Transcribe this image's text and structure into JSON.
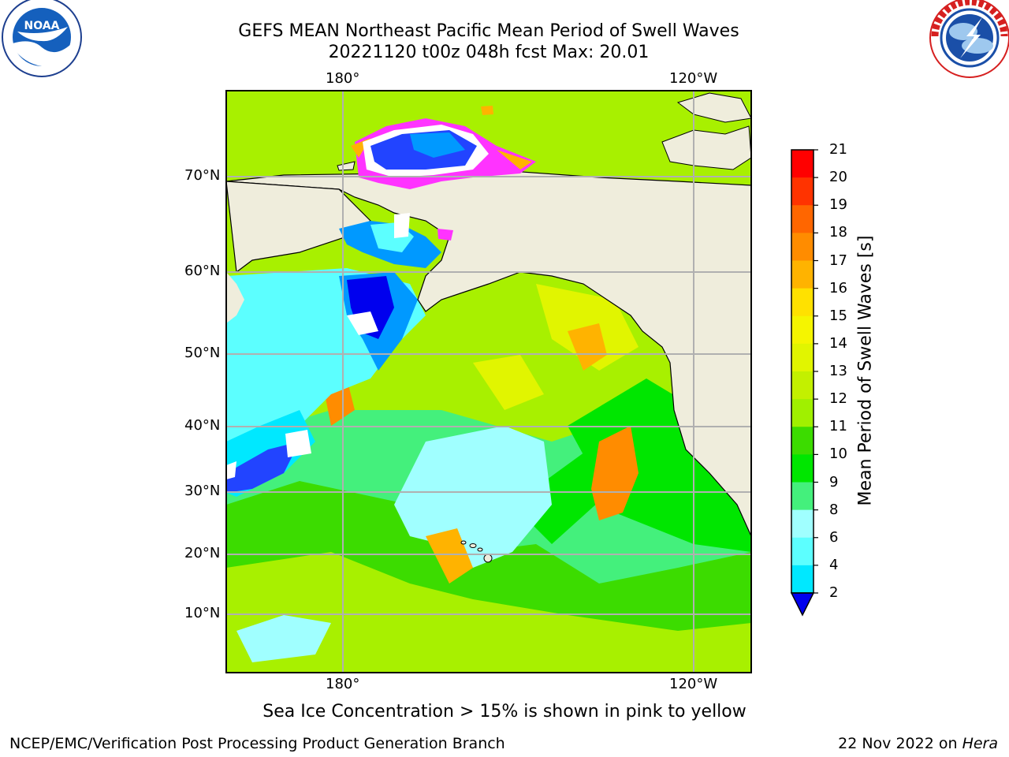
{
  "header": {
    "title_line1": "GEFS MEAN Northeast Pacific Mean Period of Swell Waves",
    "title_line2": "20221120 t00z 048h fcst   Max: 20.01"
  },
  "logos": {
    "noaa": {
      "text": "NOAA",
      "ring_text": "NATIONAL OCEANIC AND ATMOSPHERIC ADMINISTRATION · U.S. DEPARTMENT OF COMMERCE"
    },
    "nws": {
      "ring_text": "NATIONAL WEATHER SERVICE"
    }
  },
  "map": {
    "top_lon_labels": [
      "180°",
      "120°W"
    ],
    "bottom_lon_labels": [
      "180°",
      "120°W"
    ],
    "lat_labels": [
      "70°N",
      "60°N",
      "50°N",
      "40°N",
      "30°N",
      "20°N",
      "10°N"
    ],
    "colors": {
      "land": "#efeddc",
      "ice_pink": "#ff33ff",
      "ocean_deep": "#2244ff"
    }
  },
  "colorbar": {
    "title": "Mean Period of Swell Waves [s]",
    "ticks": [
      "21",
      "20",
      "19",
      "18",
      "17",
      "16",
      "15",
      "14",
      "13",
      "12",
      "11",
      "10",
      "9",
      "8",
      "6",
      "4",
      "2"
    ],
    "colors": [
      "#ff0000",
      "#ff3300",
      "#ff6600",
      "#ff8c00",
      "#ffb300",
      "#ffe100",
      "#f5f500",
      "#e1f500",
      "#c3f000",
      "#a0f000",
      "#3cdc00",
      "#00e600",
      "#44f07c",
      "#a0ffff",
      "#5cffff",
      "#00e8ff",
      "#0099ff",
      "#0000ee"
    ]
  },
  "notes": {
    "bottom": "Sea Ice Concentration > 15% is shown in pink to yellow",
    "footer_left": "NCEP/EMC/Verification Post Processing Product Generation Branch",
    "footer_right_date": "22 Nov 2022 on",
    "footer_right_host": "Hera"
  }
}
